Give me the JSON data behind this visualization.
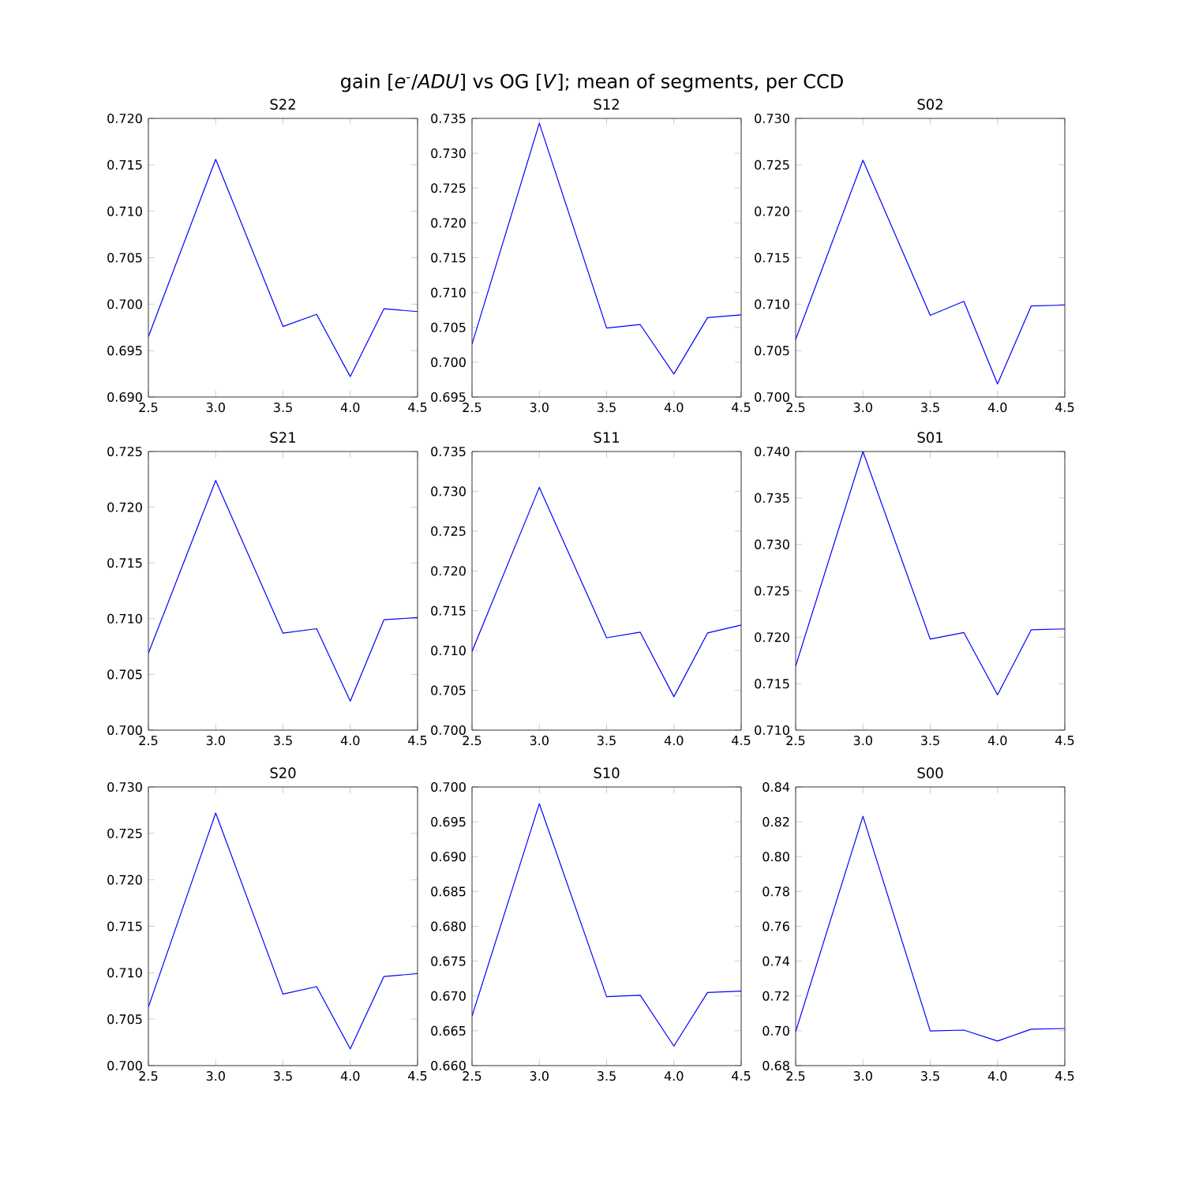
{
  "chart_data": [
    {
      "type": "line",
      "title": "S22",
      "annotations": [
        "gain [*e*$^{-}$/*ADU*] vs OG [*V*]; mean of segments, per CCD"
      ],
      "x": [
        2.5,
        3.0,
        3.5,
        3.75,
        4.0,
        4.25,
        4.5
      ],
      "values": [
        0.6965,
        0.7156,
        0.6976,
        0.6989,
        0.6922,
        0.6995,
        0.6992
      ],
      "color": "#0000ff",
      "xlim": [
        2.5,
        4.5
      ],
      "ylim": [
        0.69,
        0.72
      ],
      "xticks": [
        {
          "value": 2.5,
          "label": "2.5"
        },
        {
          "value": 3.0,
          "label": "3.0"
        },
        {
          "value": 3.5,
          "label": "3.5"
        },
        {
          "value": 4.0,
          "label": "4.0"
        },
        {
          "value": 4.5,
          "label": "4.5"
        }
      ],
      "yticks": [
        {
          "value": 0.69,
          "label": "0.690"
        },
        {
          "value": 0.695,
          "label": "0.695"
        },
        {
          "value": 0.7,
          "label": "0.700"
        },
        {
          "value": 0.705,
          "label": "0.705"
        },
        {
          "value": 0.71,
          "label": "0.710"
        },
        {
          "value": 0.715,
          "label": "0.715"
        },
        {
          "value": 0.72,
          "label": "0.720"
        }
      ]
    },
    {
      "type": "line",
      "title": "S12",
      "x": [
        2.5,
        3.0,
        3.5,
        3.75,
        4.0,
        4.25,
        4.5
      ],
      "values": [
        0.7026,
        0.7343,
        0.7049,
        0.7054,
        0.6983,
        0.7064,
        0.7068
      ],
      "color": "#0000ff",
      "xlim": [
        2.5,
        4.5
      ],
      "ylim": [
        0.695,
        0.735
      ],
      "xticks": [
        {
          "value": 2.5,
          "label": "2.5"
        },
        {
          "value": 3.0,
          "label": "3.0"
        },
        {
          "value": 3.5,
          "label": "3.5"
        },
        {
          "value": 4.0,
          "label": "4.0"
        },
        {
          "value": 4.5,
          "label": "4.5"
        }
      ],
      "yticks": [
        {
          "value": 0.695,
          "label": "0.695"
        },
        {
          "value": 0.7,
          "label": "0.700"
        },
        {
          "value": 0.705,
          "label": "0.705"
        },
        {
          "value": 0.71,
          "label": "0.710"
        },
        {
          "value": 0.715,
          "label": "0.715"
        },
        {
          "value": 0.72,
          "label": "0.720"
        },
        {
          "value": 0.725,
          "label": "0.725"
        },
        {
          "value": 0.73,
          "label": "0.730"
        },
        {
          "value": 0.735,
          "label": "0.735"
        }
      ]
    },
    {
      "type": "line",
      "title": "S02",
      "x": [
        2.5,
        3.0,
        3.5,
        3.75,
        4.0,
        4.25,
        4.5
      ],
      "values": [
        0.7062,
        0.7255,
        0.7088,
        0.7103,
        0.7014,
        0.7098,
        0.7099
      ],
      "color": "#0000ff",
      "xlim": [
        2.5,
        4.5
      ],
      "ylim": [
        0.7,
        0.73
      ],
      "xticks": [
        {
          "value": 2.5,
          "label": "2.5"
        },
        {
          "value": 3.0,
          "label": "3.0"
        },
        {
          "value": 3.5,
          "label": "3.5"
        },
        {
          "value": 4.0,
          "label": "4.0"
        },
        {
          "value": 4.5,
          "label": "4.5"
        }
      ],
      "yticks": [
        {
          "value": 0.7,
          "label": "0.700"
        },
        {
          "value": 0.705,
          "label": "0.705"
        },
        {
          "value": 0.71,
          "label": "0.710"
        },
        {
          "value": 0.715,
          "label": "0.715"
        },
        {
          "value": 0.72,
          "label": "0.720"
        },
        {
          "value": 0.725,
          "label": "0.725"
        },
        {
          "value": 0.73,
          "label": "0.730"
        }
      ]
    },
    {
      "type": "line",
      "title": "S21",
      "x": [
        2.5,
        3.0,
        3.5,
        3.75,
        4.0,
        4.25,
        4.5
      ],
      "values": [
        0.7069,
        0.7224,
        0.7087,
        0.7091,
        0.7026,
        0.7099,
        0.7101
      ],
      "color": "#0000ff",
      "xlim": [
        2.5,
        4.5
      ],
      "ylim": [
        0.7,
        0.725
      ],
      "xticks": [
        {
          "value": 2.5,
          "label": "2.5"
        },
        {
          "value": 3.0,
          "label": "3.0"
        },
        {
          "value": 3.5,
          "label": "3.5"
        },
        {
          "value": 4.0,
          "label": "4.0"
        },
        {
          "value": 4.5,
          "label": "4.5"
        }
      ],
      "yticks": [
        {
          "value": 0.7,
          "label": "0.700"
        },
        {
          "value": 0.705,
          "label": "0.705"
        },
        {
          "value": 0.71,
          "label": "0.710"
        },
        {
          "value": 0.715,
          "label": "0.715"
        },
        {
          "value": 0.72,
          "label": "0.720"
        },
        {
          "value": 0.725,
          "label": "0.725"
        }
      ]
    },
    {
      "type": "line",
      "title": "S11",
      "x": [
        2.5,
        3.0,
        3.5,
        3.75,
        4.0,
        4.25,
        4.5
      ],
      "values": [
        0.7099,
        0.7305,
        0.7116,
        0.7123,
        0.7042,
        0.7122,
        0.7132
      ],
      "color": "#0000ff",
      "xlim": [
        2.5,
        4.5
      ],
      "ylim": [
        0.7,
        0.735
      ],
      "xticks": [
        {
          "value": 2.5,
          "label": "2.5"
        },
        {
          "value": 3.0,
          "label": "3.0"
        },
        {
          "value": 3.5,
          "label": "3.5"
        },
        {
          "value": 4.0,
          "label": "4.0"
        },
        {
          "value": 4.5,
          "label": "4.5"
        }
      ],
      "yticks": [
        {
          "value": 0.7,
          "label": "0.700"
        },
        {
          "value": 0.705,
          "label": "0.705"
        },
        {
          "value": 0.71,
          "label": "0.710"
        },
        {
          "value": 0.715,
          "label": "0.715"
        },
        {
          "value": 0.72,
          "label": "0.720"
        },
        {
          "value": 0.725,
          "label": "0.725"
        },
        {
          "value": 0.73,
          "label": "0.730"
        },
        {
          "value": 0.735,
          "label": "0.735"
        }
      ]
    },
    {
      "type": "line",
      "title": "S01",
      "x": [
        2.5,
        3.0,
        3.5,
        3.75,
        4.0,
        4.25,
        4.5
      ],
      "values": [
        0.7169,
        0.74,
        0.7198,
        0.7205,
        0.7138,
        0.7208,
        0.7209
      ],
      "color": "#0000ff",
      "xlim": [
        2.5,
        4.5
      ],
      "ylim": [
        0.71,
        0.74
      ],
      "xticks": [
        {
          "value": 2.5,
          "label": "2.5"
        },
        {
          "value": 3.0,
          "label": "3.0"
        },
        {
          "value": 3.5,
          "label": "3.5"
        },
        {
          "value": 4.0,
          "label": "4.0"
        },
        {
          "value": 4.5,
          "label": "4.5"
        }
      ],
      "yticks": [
        {
          "value": 0.71,
          "label": "0.710"
        },
        {
          "value": 0.715,
          "label": "0.715"
        },
        {
          "value": 0.72,
          "label": "0.720"
        },
        {
          "value": 0.725,
          "label": "0.725"
        },
        {
          "value": 0.73,
          "label": "0.730"
        },
        {
          "value": 0.735,
          "label": "0.735"
        },
        {
          "value": 0.74,
          "label": "0.740"
        }
      ]
    },
    {
      "type": "line",
      "title": "S20",
      "x": [
        2.5,
        3.0,
        3.5,
        3.75,
        4.0,
        4.25,
        4.5
      ],
      "values": [
        0.7063,
        0.7272,
        0.7077,
        0.7085,
        0.7018,
        0.7096,
        0.7099
      ],
      "color": "#0000ff",
      "xlim": [
        2.5,
        4.5
      ],
      "ylim": [
        0.7,
        0.73
      ],
      "xticks": [
        {
          "value": 2.5,
          "label": "2.5"
        },
        {
          "value": 3.0,
          "label": "3.0"
        },
        {
          "value": 3.5,
          "label": "3.5"
        },
        {
          "value": 4.0,
          "label": "4.0"
        },
        {
          "value": 4.5,
          "label": "4.5"
        }
      ],
      "yticks": [
        {
          "value": 0.7,
          "label": "0.700"
        },
        {
          "value": 0.705,
          "label": "0.705"
        },
        {
          "value": 0.71,
          "label": "0.710"
        },
        {
          "value": 0.715,
          "label": "0.715"
        },
        {
          "value": 0.72,
          "label": "0.720"
        },
        {
          "value": 0.725,
          "label": "0.725"
        },
        {
          "value": 0.73,
          "label": "0.730"
        }
      ]
    },
    {
      "type": "line",
      "title": "S10",
      "x": [
        2.5,
        3.0,
        3.5,
        3.75,
        4.0,
        4.25,
        4.5
      ],
      "values": [
        0.6671,
        0.6976,
        0.6699,
        0.6701,
        0.6628,
        0.6705,
        0.6707
      ],
      "color": "#0000ff",
      "xlim": [
        2.5,
        4.5
      ],
      "ylim": [
        0.66,
        0.7
      ],
      "xticks": [
        {
          "value": 2.5,
          "label": "2.5"
        },
        {
          "value": 3.0,
          "label": "3.0"
        },
        {
          "value": 3.5,
          "label": "3.5"
        },
        {
          "value": 4.0,
          "label": "4.0"
        },
        {
          "value": 4.5,
          "label": "4.5"
        }
      ],
      "yticks": [
        {
          "value": 0.66,
          "label": "0.660"
        },
        {
          "value": 0.665,
          "label": "0.665"
        },
        {
          "value": 0.67,
          "label": "0.670"
        },
        {
          "value": 0.675,
          "label": "0.675"
        },
        {
          "value": 0.68,
          "label": "0.680"
        },
        {
          "value": 0.685,
          "label": "0.685"
        },
        {
          "value": 0.69,
          "label": "0.690"
        },
        {
          "value": 0.695,
          "label": "0.695"
        },
        {
          "value": 0.7,
          "label": "0.700"
        }
      ]
    },
    {
      "type": "line",
      "title": "S00",
      "x": [
        2.5,
        3.0,
        3.5,
        3.75,
        4.0,
        4.25,
        4.5
      ],
      "values": [
        0.6995,
        0.8232,
        0.6999,
        0.7004,
        0.6941,
        0.7009,
        0.7013
      ],
      "color": "#0000ff",
      "xlim": [
        2.5,
        4.5
      ],
      "ylim": [
        0.68,
        0.84
      ],
      "xticks": [
        {
          "value": 2.5,
          "label": "2.5"
        },
        {
          "value": 3.0,
          "label": "3.0"
        },
        {
          "value": 3.5,
          "label": "3.5"
        },
        {
          "value": 4.0,
          "label": "4.0"
        },
        {
          "value": 4.5,
          "label": "4.5"
        }
      ],
      "yticks": [
        {
          "value": 0.68,
          "label": "0.68"
        },
        {
          "value": 0.7,
          "label": "0.70"
        },
        {
          "value": 0.72,
          "label": "0.72"
        },
        {
          "value": 0.74,
          "label": "0.74"
        },
        {
          "value": 0.76,
          "label": "0.76"
        },
        {
          "value": 0.78,
          "label": "0.78"
        },
        {
          "value": 0.8,
          "label": "0.80"
        },
        {
          "value": 0.82,
          "label": "0.82"
        },
        {
          "value": 0.84,
          "label": "0.84"
        }
      ]
    }
  ]
}
